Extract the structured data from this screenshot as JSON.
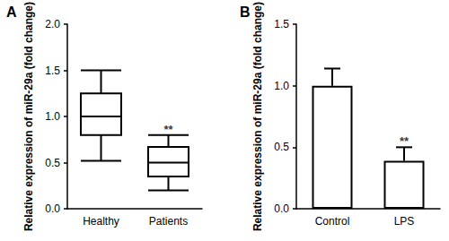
{
  "chart_data": [
    {
      "type": "boxplot",
      "panel": "A",
      "ylabel": "Relative expression of miR-29a (fold change)",
      "categories": [
        "Healthy",
        "Patients"
      ],
      "boxes": [
        {
          "min": 0.52,
          "q1": 0.8,
          "median": 1.0,
          "q3": 1.25,
          "max": 1.5
        },
        {
          "min": 0.2,
          "q1": 0.35,
          "median": 0.5,
          "q3": 0.67,
          "max": 0.8
        }
      ],
      "color": "#ffffff",
      "ylim": [
        0,
        2.0
      ],
      "yticks": [
        {
          "value": 0,
          "label": "0.0"
        },
        {
          "value": 0.5,
          "label": "0.5"
        },
        {
          "value": 1.0,
          "label": "1.0"
        },
        {
          "value": 1.5,
          "label": "1.5"
        },
        {
          "value": 2.0,
          "label": "2.0"
        }
      ],
      "grid": false,
      "annotations": [
        {
          "text": "**",
          "x": "Patients"
        }
      ]
    },
    {
      "type": "bar",
      "panel": "B",
      "ylabel": "Relative expression of miR-29a (fold change)",
      "categories": [
        "Control",
        "LPS"
      ],
      "values": [
        1.0,
        0.39
      ],
      "errors": [
        0.14,
        0.11
      ],
      "color": "#ffffff",
      "ylim": [
        0,
        1.5
      ],
      "yticks": [
        {
          "value": 0,
          "label": "0.0"
        },
        {
          "value": 0.5,
          "label": "0.5"
        },
        {
          "value": 1.0,
          "label": "1.0"
        },
        {
          "value": 1.5,
          "label": "1.5"
        }
      ],
      "grid": false,
      "annotations": [
        {
          "text": "**",
          "x": "LPS"
        }
      ]
    }
  ]
}
